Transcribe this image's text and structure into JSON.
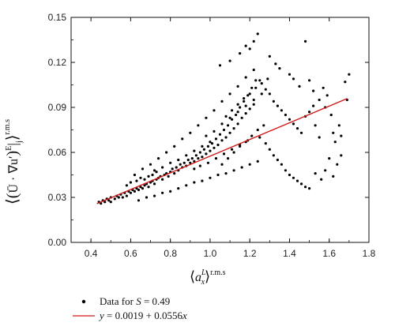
{
  "chart_data": {
    "type": "scatter",
    "title": "",
    "xlim": [
      0.3,
      1.8
    ],
    "ylim": [
      0.0,
      0.15
    ],
    "x_ticks": [
      "0.4",
      "0.6",
      "0.8",
      "1.0",
      "1.2",
      "1.4",
      "1.6",
      "1.8"
    ],
    "y_ticks": [
      "0.00",
      "0.03",
      "0.06",
      "0.09",
      "0.12",
      "0.15"
    ],
    "grid": false,
    "legend_position": "bottom-left (below plot)",
    "xlabel": {
      "base": "a",
      "superscript": "L",
      "subscript": "x",
      "outer_superscript": "r.m.s"
    },
    "ylabel": {
      "inner": "Ū · ∇u′",
      "superscript_E": "E",
      "subscript_j": "j",
      "outer_superscript": "r.m.s"
    },
    "series": [
      {
        "name": "Data for S = 0.49",
        "kind": "scatter",
        "color": "#000000",
        "points": [
          [
            0.44,
            0.027
          ],
          [
            0.45,
            0.026
          ],
          [
            0.46,
            0.028
          ],
          [
            0.47,
            0.027
          ],
          [
            0.48,
            0.029
          ],
          [
            0.49,
            0.028
          ],
          [
            0.5,
            0.03
          ],
          [
            0.5,
            0.027
          ],
          [
            0.52,
            0.029
          ],
          [
            0.53,
            0.031
          ],
          [
            0.54,
            0.03
          ],
          [
            0.55,
            0.032
          ],
          [
            0.56,
            0.03
          ],
          [
            0.57,
            0.033
          ],
          [
            0.58,
            0.031
          ],
          [
            0.59,
            0.034
          ],
          [
            0.6,
            0.033
          ],
          [
            0.61,
            0.035
          ],
          [
            0.62,
            0.034
          ],
          [
            0.63,
            0.036
          ],
          [
            0.64,
            0.035
          ],
          [
            0.65,
            0.037
          ],
          [
            0.66,
            0.036
          ],
          [
            0.67,
            0.038
          ],
          [
            0.68,
            0.039
          ],
          [
            0.69,
            0.037
          ],
          [
            0.7,
            0.04
          ],
          [
            0.71,
            0.041
          ],
          [
            0.72,
            0.039
          ],
          [
            0.73,
            0.042
          ],
          [
            0.74,
            0.043
          ],
          [
            0.75,
            0.044
          ],
          [
            0.76,
            0.042
          ],
          [
            0.77,
            0.045
          ],
          [
            0.78,
            0.046
          ],
          [
            0.79,
            0.044
          ],
          [
            0.8,
            0.047
          ],
          [
            0.81,
            0.049
          ],
          [
            0.82,
            0.046
          ],
          [
            0.83,
            0.05
          ],
          [
            0.84,
            0.048
          ],
          [
            0.85,
            0.052
          ],
          [
            0.86,
            0.05
          ],
          [
            0.87,
            0.053
          ],
          [
            0.88,
            0.051
          ],
          [
            0.89,
            0.055
          ],
          [
            0.9,
            0.053
          ],
          [
            0.91,
            0.056
          ],
          [
            0.92,
            0.054
          ],
          [
            0.93,
            0.058
          ],
          [
            0.94,
            0.056
          ],
          [
            0.95,
            0.06
          ],
          [
            0.96,
            0.057
          ],
          [
            0.97,
            0.062
          ],
          [
            0.98,
            0.059
          ],
          [
            0.99,
            0.064
          ],
          [
            1.0,
            0.061
          ],
          [
            1.01,
            0.066
          ],
          [
            1.02,
            0.063
          ],
          [
            1.03,
            0.069
          ],
          [
            1.04,
            0.065
          ],
          [
            1.05,
            0.072
          ],
          [
            1.06,
            0.068
          ],
          [
            1.07,
            0.075
          ],
          [
            1.08,
            0.07
          ],
          [
            1.09,
            0.078
          ],
          [
            1.1,
            0.073
          ],
          [
            1.11,
            0.082
          ],
          [
            1.12,
            0.076
          ],
          [
            1.13,
            0.085
          ],
          [
            1.14,
            0.079
          ],
          [
            1.15,
            0.09
          ],
          [
            1.16,
            0.083
          ],
          [
            1.17,
            0.094
          ],
          [
            1.18,
            0.086
          ],
          [
            1.19,
            0.098
          ],
          [
            1.2,
            0.089
          ],
          [
            1.21,
            0.103
          ],
          [
            1.22,
            0.092
          ],
          [
            1.23,
            0.108
          ],
          [
            0.62,
            0.045
          ],
          [
            0.66,
            0.049
          ],
          [
            0.7,
            0.052
          ],
          [
            0.74,
            0.056
          ],
          [
            0.78,
            0.06
          ],
          [
            0.82,
            0.064
          ],
          [
            0.86,
            0.069
          ],
          [
            0.9,
            0.073
          ],
          [
            0.94,
            0.078
          ],
          [
            0.98,
            0.083
          ],
          [
            1.02,
            0.088
          ],
          [
            1.06,
            0.094
          ],
          [
            1.1,
            0.099
          ],
          [
            1.14,
            0.104
          ],
          [
            1.18,
            0.11
          ],
          [
            1.22,
            0.115
          ],
          [
            0.64,
            0.028
          ],
          [
            0.68,
            0.03
          ],
          [
            0.72,
            0.031
          ],
          [
            0.76,
            0.033
          ],
          [
            0.8,
            0.034
          ],
          [
            0.84,
            0.036
          ],
          [
            0.88,
            0.038
          ],
          [
            0.92,
            0.04
          ],
          [
            0.96,
            0.041
          ],
          [
            1.0,
            0.043
          ],
          [
            1.04,
            0.045
          ],
          [
            1.08,
            0.046
          ],
          [
            1.12,
            0.048
          ],
          [
            1.16,
            0.05
          ],
          [
            1.2,
            0.052
          ],
          [
            1.24,
            0.054
          ],
          [
            1.05,
            0.118
          ],
          [
            1.1,
            0.121
          ],
          [
            1.15,
            0.126
          ],
          [
            1.18,
            0.131
          ],
          [
            1.2,
            0.129
          ],
          [
            1.22,
            0.134
          ],
          [
            1.24,
            0.139
          ],
          [
            1.3,
            0.124
          ],
          [
            1.33,
            0.119
          ],
          [
            1.35,
            0.116
          ],
          [
            1.4,
            0.112
          ],
          [
            1.42,
            0.109
          ],
          [
            1.45,
            0.104
          ],
          [
            1.48,
            0.134
          ],
          [
            1.5,
            0.108
          ],
          [
            1.52,
            0.101
          ],
          [
            1.25,
            0.108
          ],
          [
            1.28,
            0.102
          ],
          [
            1.3,
            0.099
          ],
          [
            1.32,
            0.094
          ],
          [
            1.34,
            0.091
          ],
          [
            1.36,
            0.088
          ],
          [
            1.38,
            0.085
          ],
          [
            1.4,
            0.082
          ],
          [
            1.42,
            0.079
          ],
          [
            1.44,
            0.076
          ],
          [
            1.46,
            0.073
          ],
          [
            1.48,
            0.084
          ],
          [
            1.5,
            0.087
          ],
          [
            1.52,
            0.091
          ],
          [
            1.55,
            0.095
          ],
          [
            1.58,
            0.09
          ],
          [
            1.25,
            0.07
          ],
          [
            1.28,
            0.066
          ],
          [
            1.3,
            0.062
          ],
          [
            1.32,
            0.058
          ],
          [
            1.34,
            0.055
          ],
          [
            1.36,
            0.052
          ],
          [
            1.38,
            0.048
          ],
          [
            1.4,
            0.045
          ],
          [
            1.42,
            0.043
          ],
          [
            1.44,
            0.041
          ],
          [
            1.46,
            0.039
          ],
          [
            1.48,
            0.037
          ],
          [
            1.5,
            0.036
          ],
          [
            1.53,
            0.046
          ],
          [
            1.56,
            0.042
          ],
          [
            1.58,
            0.048
          ],
          [
            1.6,
            0.056
          ],
          [
            1.62,
            0.044
          ],
          [
            1.63,
            0.067
          ],
          [
            1.64,
            0.052
          ],
          [
            1.65,
            0.078
          ],
          [
            1.66,
            0.071
          ],
          [
            1.68,
            0.107
          ],
          [
            1.7,
            0.112
          ],
          [
            1.69,
            0.095
          ],
          [
            1.66,
            0.058
          ],
          [
            1.62,
            0.073
          ],
          [
            1.61,
            0.085
          ],
          [
            1.59,
            0.098
          ],
          [
            1.57,
            0.103
          ],
          [
            1.55,
            0.07
          ],
          [
            1.53,
            0.078
          ],
          [
            1.06,
            0.052
          ],
          [
            1.09,
            0.056
          ],
          [
            1.12,
            0.06
          ],
          [
            1.15,
            0.064
          ],
          [
            1.18,
            0.067
          ],
          [
            1.21,
            0.071
          ],
          [
            1.24,
            0.075
          ],
          [
            1.27,
            0.078
          ],
          [
            1.08,
            0.084
          ],
          [
            1.11,
            0.088
          ],
          [
            1.14,
            0.092
          ],
          [
            1.17,
            0.096
          ],
          [
            1.2,
            0.099
          ],
          [
            1.23,
            0.103
          ],
          [
            1.26,
            0.106
          ],
          [
            1.29,
            0.109
          ],
          [
            0.98,
            0.071
          ],
          [
            1.02,
            0.074
          ],
          [
            1.06,
            0.079
          ],
          [
            1.1,
            0.083
          ],
          [
            1.14,
            0.087
          ],
          [
            1.18,
            0.091
          ],
          [
            1.22,
            0.095
          ],
          [
            1.26,
            0.099
          ],
          [
            0.92,
            0.049
          ],
          [
            0.95,
            0.051
          ],
          [
            0.99,
            0.053
          ],
          [
            1.03,
            0.056
          ],
          [
            1.07,
            0.059
          ],
          [
            1.11,
            0.062
          ],
          [
            1.15,
            0.065
          ],
          [
            1.19,
            0.068
          ],
          [
            0.72,
            0.048
          ],
          [
            0.76,
            0.05
          ],
          [
            0.8,
            0.053
          ],
          [
            0.84,
            0.055
          ],
          [
            0.88,
            0.058
          ],
          [
            0.92,
            0.061
          ],
          [
            0.96,
            0.064
          ],
          [
            1.0,
            0.067
          ],
          [
            0.58,
            0.038
          ],
          [
            0.6,
            0.04
          ],
          [
            0.63,
            0.041
          ],
          [
            0.65,
            0.043
          ],
          [
            0.67,
            0.042
          ],
          [
            0.69,
            0.044
          ],
          [
            0.71,
            0.045
          ],
          [
            0.73,
            0.047
          ]
        ]
      },
      {
        "name": "y = 0.0019 + 0.0556x",
        "kind": "line",
        "color": "#d11a1a",
        "x": [
          0.43,
          1.69
        ],
        "y": [
          0.02581,
          0.09586
        ]
      }
    ]
  },
  "legend": {
    "scatter_label_prefix": "Data for ",
    "scatter_label_var": "S",
    "scatter_label_suffix": " = 0.49",
    "line_label_y": "y",
    "line_label_mid": " = 0.0019 + 0.0556",
    "line_label_x": "x"
  }
}
